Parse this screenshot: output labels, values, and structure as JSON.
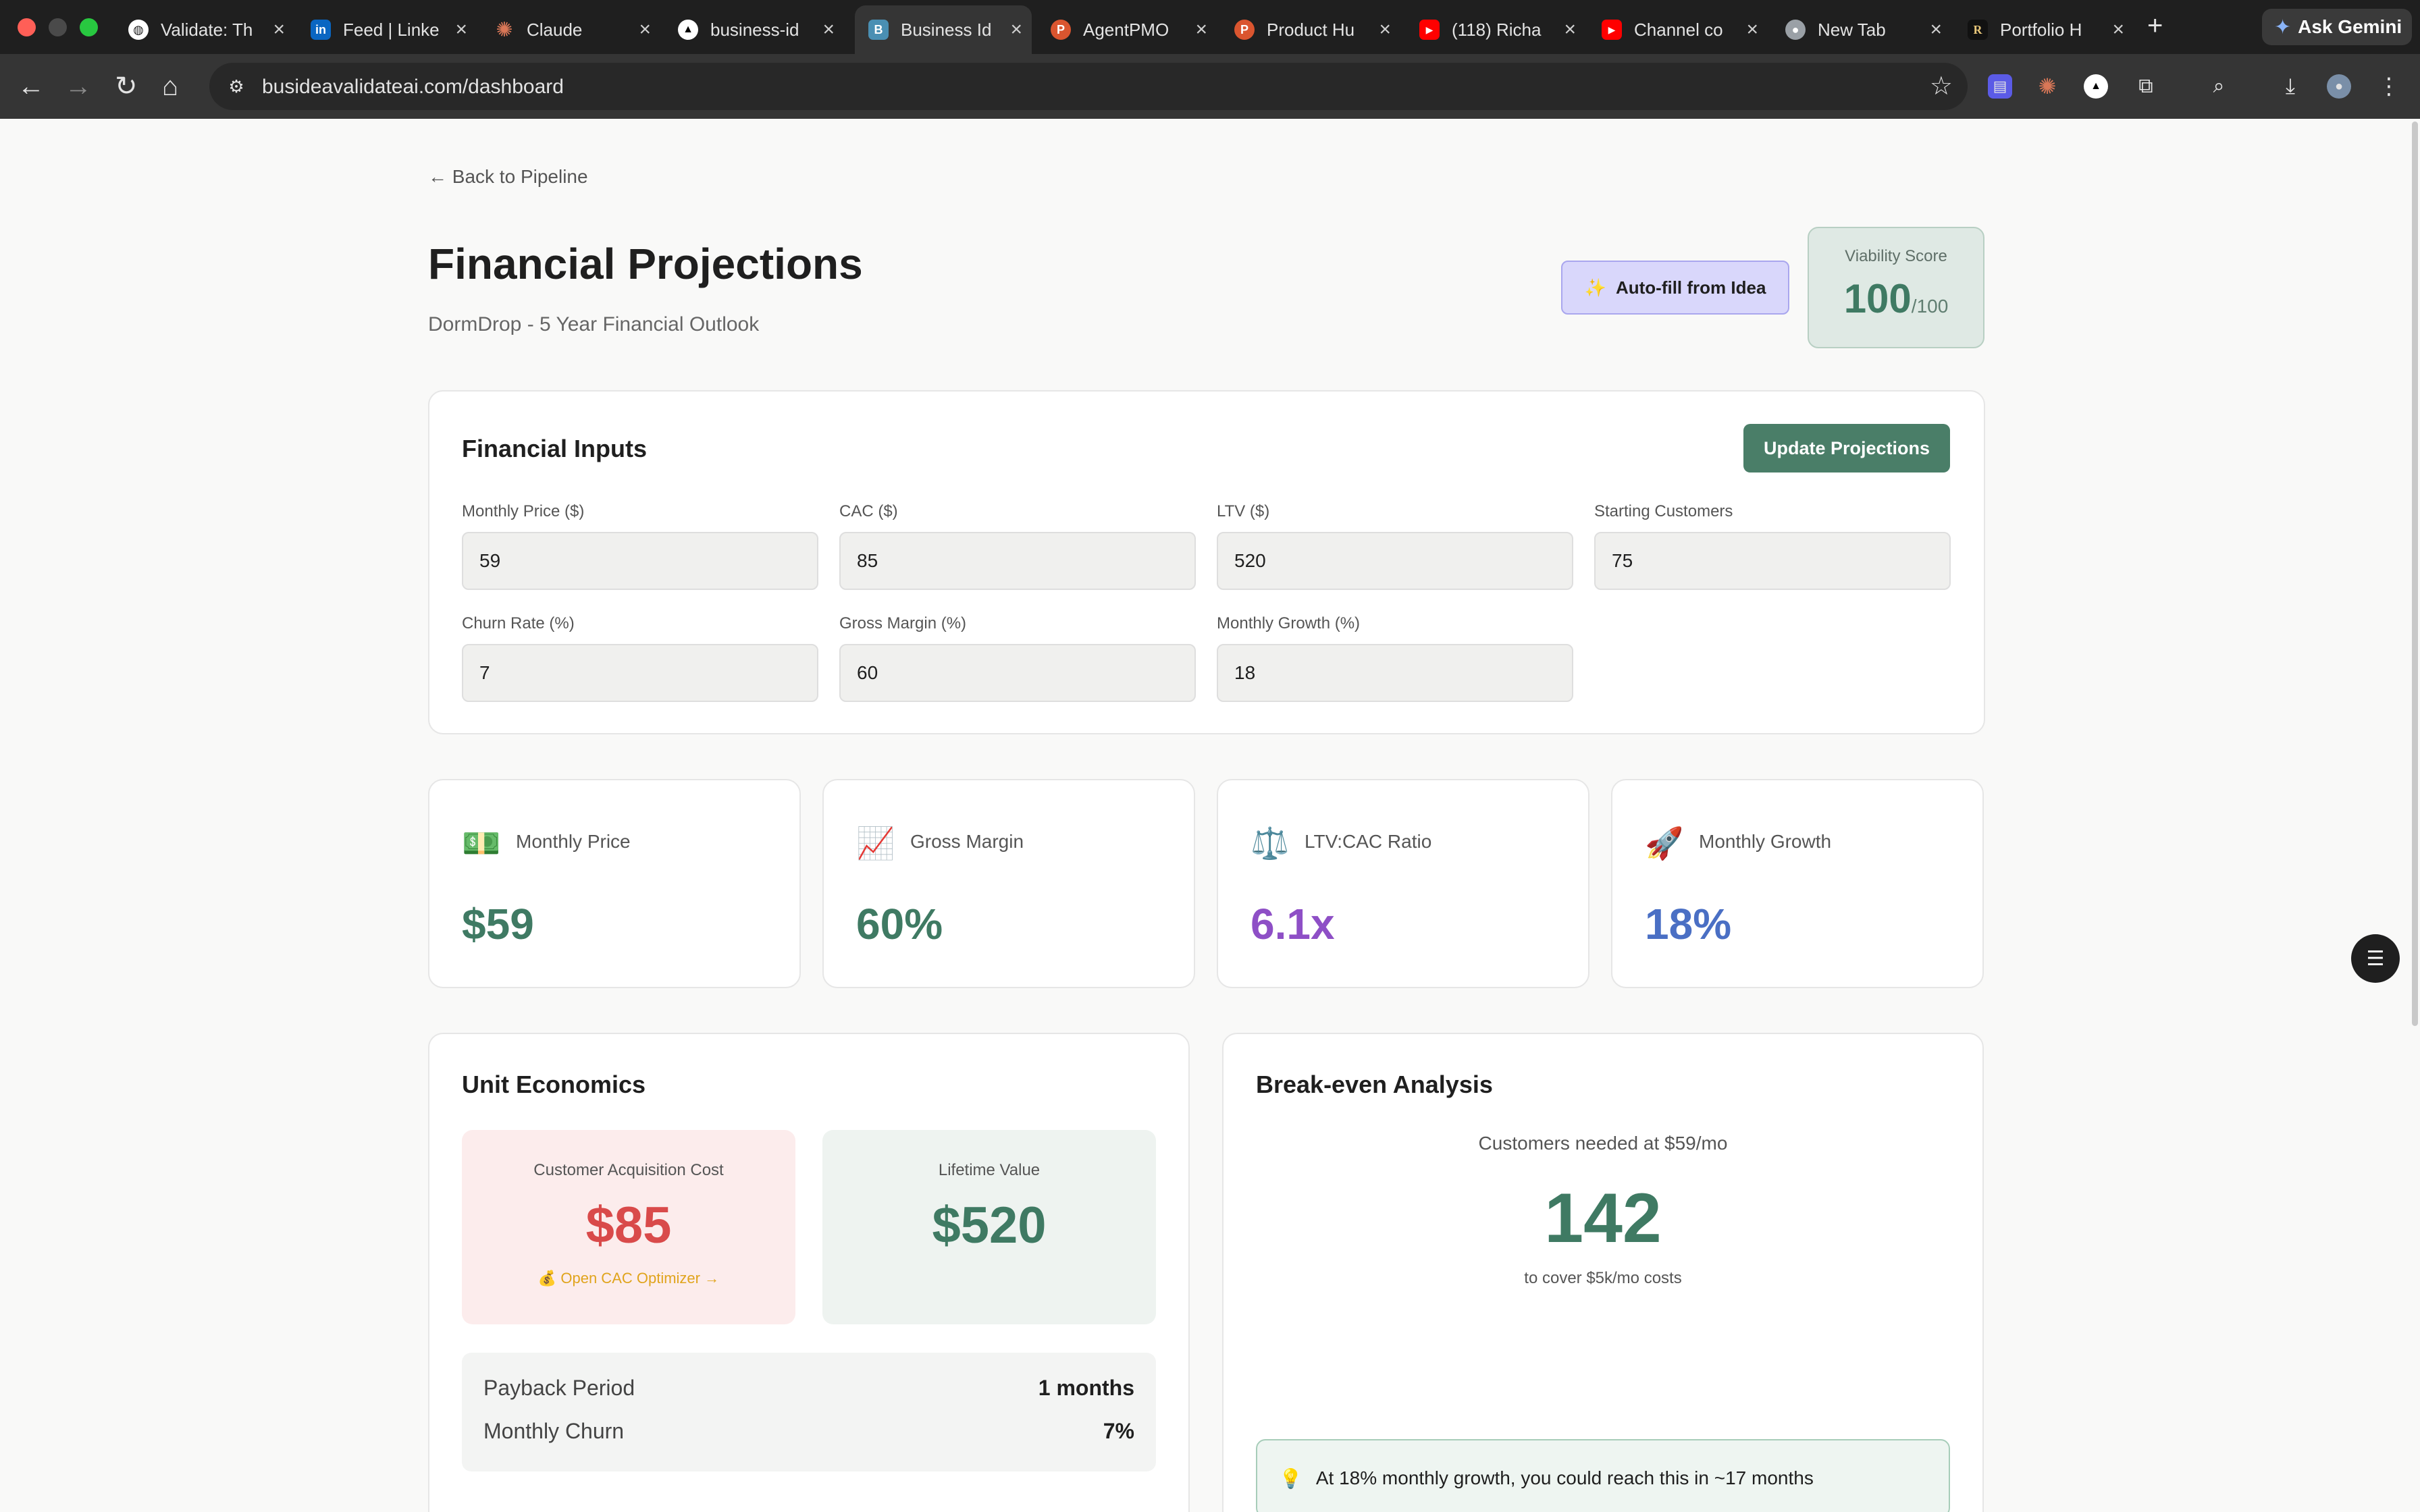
{
  "browser": {
    "tabs": [
      {
        "label": "Validate: Th",
        "icon": "validate-favicon",
        "color": "#ffffff"
      },
      {
        "label": "Feed | Linke",
        "icon": "linkedin-favicon",
        "color": "#0a66c2"
      },
      {
        "label": "Claude",
        "icon": "claude-favicon",
        "color": "#d97757"
      },
      {
        "label": "business-id",
        "icon": "vercel-favicon",
        "color": "#ffffff"
      },
      {
        "label": "Business Id",
        "icon": "business-favicon",
        "color": "#4a8fb3",
        "active": true
      },
      {
        "label": "AgentPMO",
        "icon": "producthunt-favicon",
        "color": "#da552f"
      },
      {
        "label": "Product Hu",
        "icon": "producthunt-favicon",
        "color": "#da552f"
      },
      {
        "label": "(118) Richa",
        "icon": "youtube-favicon",
        "color": "#ff0000"
      },
      {
        "label": "Channel co",
        "icon": "youtube-favicon",
        "color": "#ff0000"
      },
      {
        "label": "New Tab",
        "icon": "chrome-favicon",
        "color": "#9aa0a6"
      },
      {
        "label": "Portfolio H",
        "icon": "portfolio-favicon",
        "color": "#111111"
      }
    ],
    "gemini_label": "Ask Gemini",
    "url": "busideavalidateai.com/dashboard"
  },
  "page": {
    "back_link": "← Back to Pipeline",
    "title": "Financial Projections",
    "subtitle": "DormDrop - 5 Year Financial Outlook",
    "autofill_label": "Auto-fill from Idea",
    "viability": {
      "label": "Viability Score",
      "value": "100",
      "max": "/100"
    }
  },
  "inputs": {
    "title": "Financial Inputs",
    "update_label": "Update Projections",
    "fields": [
      {
        "label": "Monthly Price ($)",
        "value": "59"
      },
      {
        "label": "CAC ($)",
        "value": "85"
      },
      {
        "label": "LTV ($)",
        "value": "520"
      },
      {
        "label": "Starting Customers",
        "value": "75"
      },
      {
        "label": "Churn Rate (%)",
        "value": "7"
      },
      {
        "label": "Gross Margin (%)",
        "value": "60"
      },
      {
        "label": "Monthly Growth (%)",
        "value": "18"
      }
    ]
  },
  "metrics": [
    {
      "icon": "💵",
      "label": "Monthly Price",
      "value": "$59",
      "color": "#3f7a63"
    },
    {
      "icon": "📈",
      "label": "Gross Margin",
      "value": "60%",
      "color": "#3f7a63"
    },
    {
      "icon": "⚖️",
      "label": "LTV:CAC Ratio",
      "value": "6.1x",
      "color": "#8e4fc6"
    },
    {
      "icon": "🚀",
      "label": "Monthly Growth",
      "value": "18%",
      "color": "#4a6fc4"
    }
  ],
  "unit_economics": {
    "title": "Unit Economics",
    "cac_label": "Customer Acquisition Cost",
    "cac_value": "$85",
    "cac_link": "💰 Open CAC Optimizer →",
    "ltv_label": "Lifetime Value",
    "ltv_value": "$520",
    "rows": [
      {
        "label": "Payback Period",
        "value": "1 months"
      },
      {
        "label": "Monthly Churn",
        "value": "7%"
      }
    ]
  },
  "breakeven": {
    "title": "Break-even Analysis",
    "caption": "Customers needed at $59/mo",
    "value": "142",
    "note": "to cover $5k/mo costs",
    "insight": "At 18% monthly growth, you could reach this in ~17 months"
  }
}
